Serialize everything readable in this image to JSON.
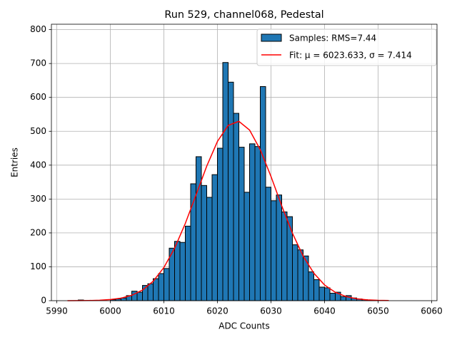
{
  "chart_data": {
    "type": "histogram",
    "title": "Run 529, channel068, Pedestal",
    "xlabel": "ADC Counts",
    "ylabel": "Entries",
    "name": "Samples: RMS=7.44",
    "color": "#1f77b4",
    "edgecolor": "#000000",
    "bins": [
      5992,
      5993,
      5994,
      5995,
      5996,
      5997,
      5998,
      5999,
      6000,
      6001,
      6002,
      6003,
      6004,
      6005,
      6006,
      6007,
      6008,
      6009,
      6010,
      6011,
      6012,
      6013,
      6014,
      6015,
      6016,
      6017,
      6018,
      6019,
      6020,
      6021,
      6022,
      6023,
      6024,
      6025,
      6026,
      6027,
      6028,
      6029,
      6030,
      6031,
      6032,
      6033,
      6034,
      6035,
      6036,
      6037,
      6038,
      6039,
      6040,
      6041,
      6042,
      6043,
      6044,
      6045,
      6046,
      6047,
      6048,
      6049,
      6050
    ],
    "counts": [
      0,
      0,
      2,
      0,
      0,
      0,
      0,
      0,
      3,
      5,
      8,
      15,
      28,
      25,
      45,
      50,
      65,
      80,
      95,
      155,
      175,
      172,
      220,
      345,
      425,
      340,
      305,
      372,
      450,
      703,
      645,
      553,
      453,
      320,
      463,
      455,
      632,
      335,
      295,
      312,
      262,
      248,
      165,
      150,
      132,
      85,
      62,
      40,
      38,
      22,
      25,
      12,
      15,
      8,
      5,
      3,
      2,
      1
    ],
    "overlay": {
      "type": "line",
      "name": "Fit: μ = 6023.633, σ = 7.414",
      "color": "#ff0000",
      "x": [
        5992,
        5994,
        5996,
        5998,
        6000,
        6002,
        6004,
        6006,
        6008,
        6010,
        6012,
        6014,
        6016,
        6018,
        6020,
        6022,
        6024,
        6026,
        6028,
        6030,
        6032,
        6034,
        6036,
        6038,
        6040,
        6042,
        6044,
        6046,
        6048,
        6050,
        6052
      ],
      "values": [
        0.1,
        0.2,
        0.5,
        1.3,
        3.3,
        7.5,
        15.9,
        31.3,
        57.4,
        97.8,
        154.8,
        227.9,
        312.0,
        397.1,
        470.0,
        517.3,
        529.4,
        503.6,
        445.6,
        366.6,
        280.3,
        199.4,
        131.8,
        81.1,
        46.4,
        24.7,
        12.2,
        5.6,
        2.4,
        1.0,
        0.4
      ]
    },
    "xlim": [
      5989,
      6061
    ],
    "ylim": [
      0,
      816
    ],
    "xticks": [
      5990,
      6000,
      6010,
      6020,
      6030,
      6040,
      6050,
      6060
    ],
    "yticks": [
      0,
      100,
      200,
      300,
      400,
      500,
      600,
      700,
      800
    ],
    "grid": true,
    "legend": "upper right"
  }
}
